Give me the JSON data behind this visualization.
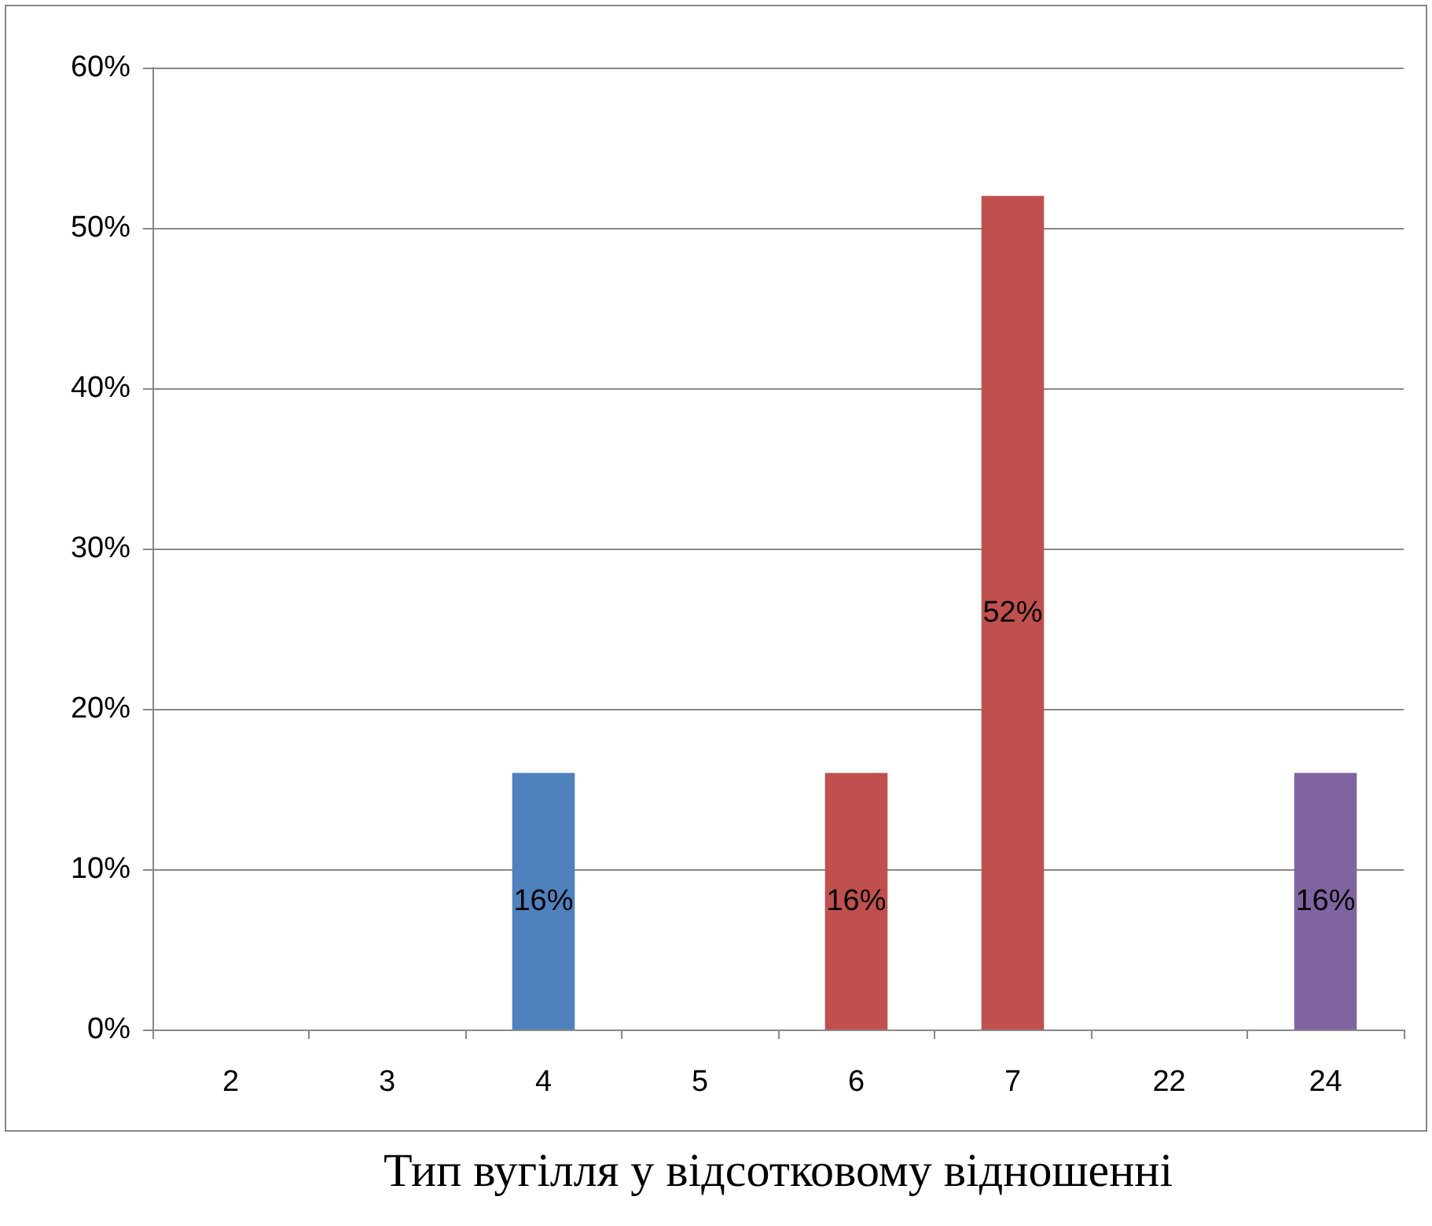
{
  "chart_data": {
    "type": "bar",
    "xlabel": "Тип вугілля у відсотковому відношенні",
    "categories": [
      "2",
      "3",
      "4",
      "5",
      "6",
      "7",
      "22",
      "24"
    ],
    "values": [
      null,
      null,
      16,
      null,
      16,
      52,
      null,
      16
    ],
    "colors": [
      null,
      null,
      "#4f81bd",
      null,
      "#c0504d",
      "#c0504d",
      null,
      "#8064a2"
    ],
    "value_labels": [
      null,
      null,
      "16%",
      null,
      "16%",
      "52%",
      null,
      "16%"
    ],
    "ylim": [
      0,
      60
    ],
    "yticks": [
      {
        "value": 0,
        "label": "0%"
      },
      {
        "value": 10,
        "label": "10%"
      },
      {
        "value": 20,
        "label": "20%"
      },
      {
        "value": 30,
        "label": "30%"
      },
      {
        "value": 40,
        "label": "40%"
      },
      {
        "value": 50,
        "label": "50%"
      },
      {
        "value": 60,
        "label": "60%"
      }
    ],
    "grid": "y"
  }
}
